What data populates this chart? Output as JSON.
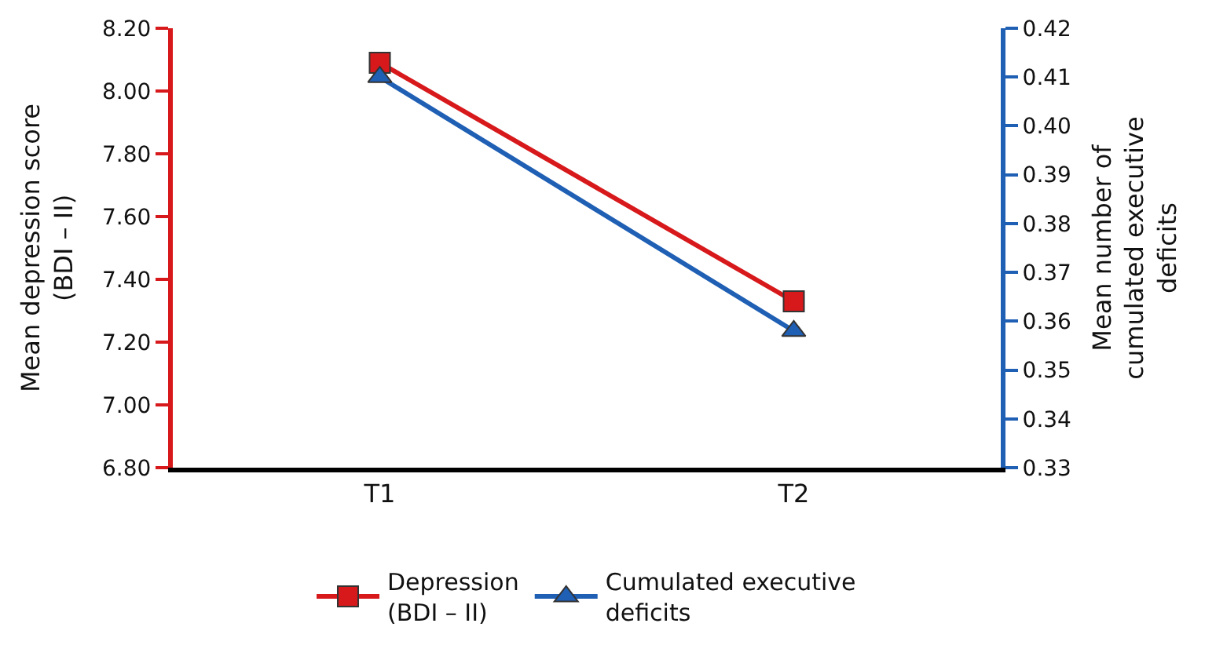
{
  "chart_data": {
    "type": "line",
    "categories": [
      "T1",
      "T2"
    ],
    "ylabel": "Mean depression score\n(BDI – II)",
    "y2label": "Mean number of\ncumulated executive\ndeficits",
    "series": [
      {
        "name": "Depression\n(BDI – II)",
        "color": "#d7191c",
        "values": [
          8.09,
          7.33
        ],
        "marker": "square"
      },
      {
        "name": "Cumulated executive\ndeficits",
        "color": "#1f5fb4",
        "values": [
          0.41,
          0.358
        ],
        "marker": "triangle",
        "axis": "y2"
      }
    ],
    "ylim": [
      6.8,
      8.2
    ],
    "yticks": [
      {
        "value": 6.8,
        "label": "6.80"
      },
      {
        "value": 7,
        "label": "7.00"
      },
      {
        "value": 7.2,
        "label": "7.20"
      },
      {
        "value": 7.4,
        "label": "7.40"
      },
      {
        "value": 7.6,
        "label": "7.60"
      },
      {
        "value": 7.8,
        "label": "7.80"
      },
      {
        "value": 8,
        "label": "8.00"
      },
      {
        "value": 8.2,
        "label": "8.20"
      }
    ],
    "y2lim": [
      0.33,
      0.42
    ],
    "y2ticks": [
      0.33,
      0.34,
      0.35,
      0.36,
      0.37,
      0.38,
      0.39,
      {
        "value": 0.4,
        "label": "0.40"
      },
      0.41,
      0.42
    ],
    "legend": "bottom",
    "line_style": "solid"
  }
}
